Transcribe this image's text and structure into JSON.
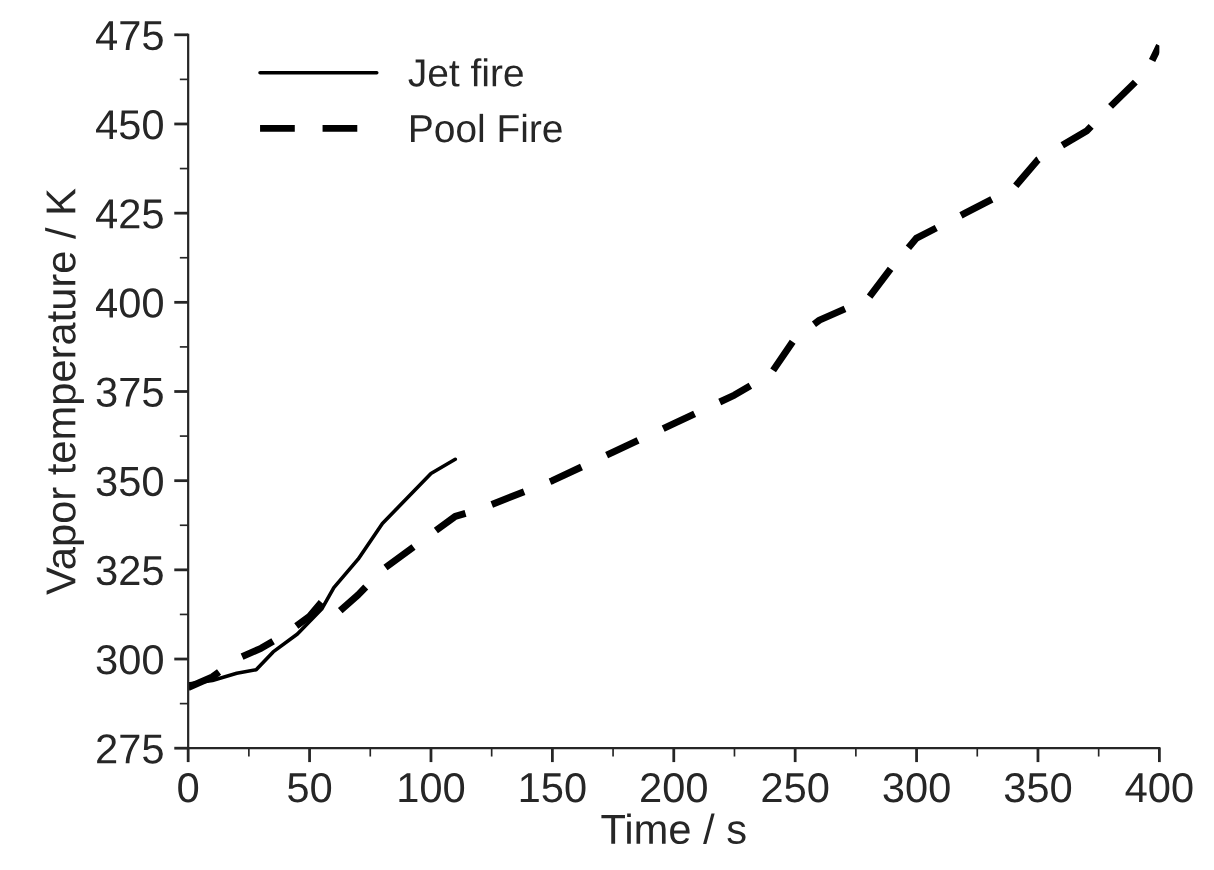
{
  "chart_data": {
    "type": "line",
    "xlabel": "Time / s",
    "ylabel": "Vapor temperature / K",
    "xlim": [
      0,
      400
    ],
    "xticks": [
      0,
      50,
      100,
      150,
      200,
      250,
      300,
      350,
      400
    ],
    "ylim": [
      275,
      475
    ],
    "yticks": [
      275,
      300,
      325,
      350,
      375,
      400,
      425,
      450,
      475
    ],
    "grid": false,
    "legend": "top left",
    "series": [
      {
        "name": "Jet fire",
        "color": "#000000",
        "line_style": "solid",
        "x": [
          0,
          10,
          20,
          28,
          35,
          45,
          55,
          60,
          70,
          80,
          90,
          100,
          110
        ],
        "values": [
          293,
          294,
          296,
          297,
          302,
          307,
          314,
          320,
          328,
          338,
          345,
          352,
          356
        ]
      },
      {
        "name": "Pool Fire",
        "color": "#000000",
        "line_style": "dashed",
        "x": [
          0,
          10,
          20,
          30,
          40,
          50,
          55,
          60,
          70,
          80,
          90,
          100,
          110,
          120,
          150,
          175,
          200,
          225,
          240,
          250,
          260,
          280,
          290,
          300,
          320,
          340,
          350,
          370,
          380,
          395,
          400
        ],
        "values": [
          292,
          295,
          300,
          303,
          307,
          312,
          316,
          312,
          318,
          325,
          330,
          335,
          340,
          342,
          350,
          358,
          366,
          374,
          380,
          390,
          395,
          401,
          410,
          418,
          425,
          432,
          440,
          448,
          455,
          465,
          472
        ]
      }
    ]
  }
}
